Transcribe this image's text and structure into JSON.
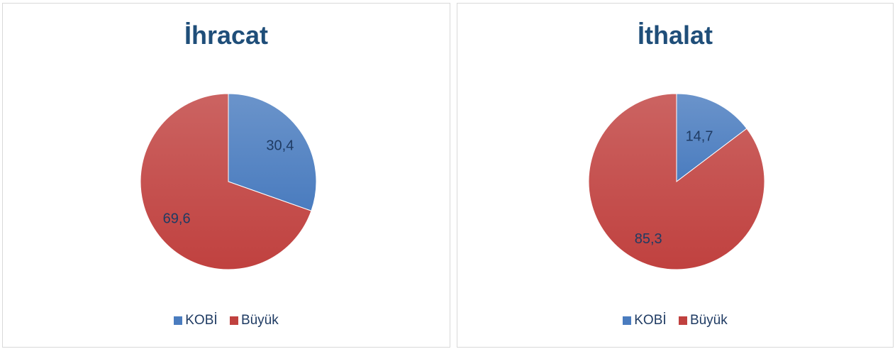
{
  "colors": {
    "kobi": "#4a7cbf",
    "buyuk": "#c0413f",
    "title": "#1f4e79",
    "label": "#1f3b63"
  },
  "chart_data": [
    {
      "type": "pie",
      "title": "İhracat",
      "categories": [
        "KOBİ",
        "Büyük"
      ],
      "values": [
        30.4,
        69.6
      ],
      "labels": [
        "30,4",
        "69,6"
      ],
      "legend": "bottom"
    },
    {
      "type": "pie",
      "title": "İthalat",
      "categories": [
        "KOBİ",
        "Büyük"
      ],
      "values": [
        14.7,
        85.3
      ],
      "labels": [
        "14,7",
        "85,3"
      ],
      "legend": "bottom"
    }
  ]
}
